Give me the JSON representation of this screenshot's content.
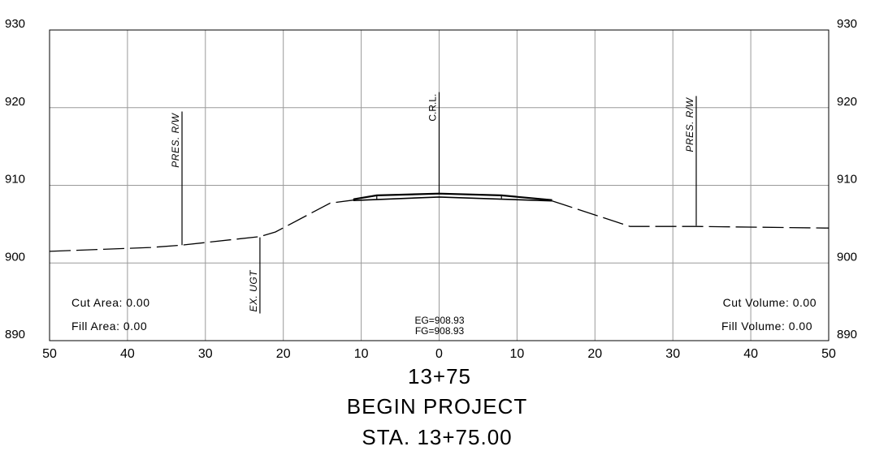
{
  "section": {
    "x_axis": {
      "min": -50,
      "max": 50,
      "step": 10,
      "tick_labels": [
        "50",
        "40",
        "30",
        "20",
        "10",
        "0",
        "10",
        "20",
        "30",
        "40",
        "50"
      ]
    },
    "y_axis": {
      "min": 890,
      "max": 930,
      "step": 10,
      "tick_labels": [
        "890",
        "900",
        "910",
        "920",
        "930"
      ]
    },
    "existing_ground": [
      [
        -50,
        901.5
      ],
      [
        -37,
        902.0
      ],
      [
        -33,
        902.3
      ],
      [
        -23,
        903.4
      ],
      [
        -21,
        904.0
      ],
      [
        -14,
        907.7
      ],
      [
        -11,
        908.1
      ]
    ],
    "existing_ground_right": [
      [
        14.5,
        908.0
      ],
      [
        16,
        907.5
      ],
      [
        24.5,
        904.7
      ],
      [
        33,
        904.7
      ],
      [
        50,
        904.5
      ]
    ],
    "template_top": [
      [
        -11,
        908.2
      ],
      [
        -8,
        908.7
      ],
      [
        0,
        908.93
      ],
      [
        8,
        908.7
      ],
      [
        14.5,
        908.1
      ]
    ],
    "template_bottom": [
      [
        -11,
        908.05
      ],
      [
        0,
        908.5
      ],
      [
        14.5,
        908.0
      ]
    ],
    "verticals": [
      {
        "id": "pres-rw-left",
        "x": -33,
        "y_bottom": 902.3,
        "y_top": 919.5,
        "label": "PRES. R/W"
      },
      {
        "id": "crl",
        "x": 0,
        "y_bottom": 909.0,
        "y_top": 922.0,
        "label": "C.R.L."
      },
      {
        "id": "pres-rw-right",
        "x": 33,
        "y_bottom": 904.8,
        "y_top": 921.5,
        "label": "PRES. R/W"
      },
      {
        "id": "ex-ugt",
        "x": -23,
        "y_bottom": 903.3,
        "y_top": 893.5,
        "label": "EX. UGT"
      }
    ]
  },
  "labels": {
    "cut_area": "Cut  Area:  0.00",
    "fill_area": "Fill  Area:  0.00",
    "cut_volume": "Cut  Volume:  0.00",
    "fill_volume": "Fill  Volume:  0.00",
    "eg": "EG=908.93",
    "fg": "FG=908.93",
    "station": "13+75",
    "begin": "BEGIN  PROJECT",
    "sta": "STA.  13+75.00"
  }
}
